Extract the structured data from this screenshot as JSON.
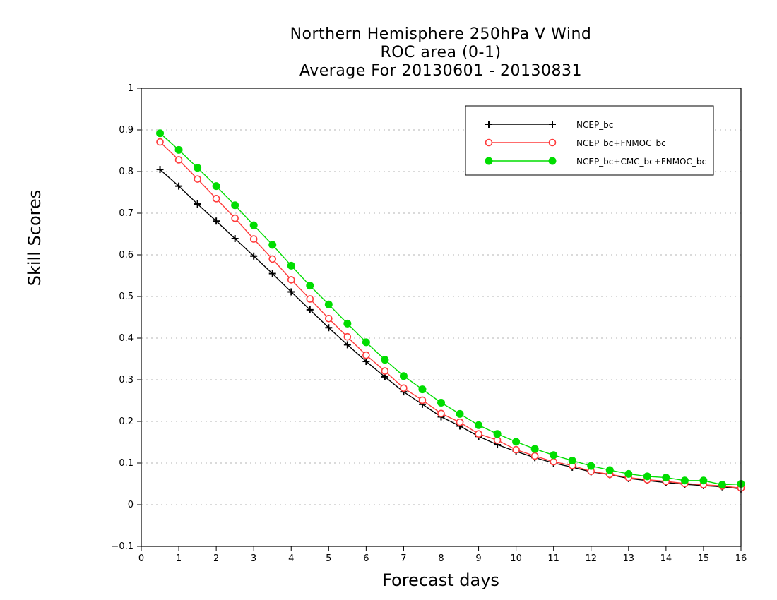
{
  "chart_data": {
    "type": "line",
    "title_lines": [
      "Northern Hemisphere 250hPa V Wind",
      "ROC area (0-1)",
      "Average For 20130601 - 20130831"
    ],
    "xlabel": "Forecast days",
    "ylabel": "Skill Scores",
    "xlim": [
      0,
      16
    ],
    "ylim": [
      -0.1,
      1
    ],
    "xticks": [
      0,
      1,
      2,
      3,
      4,
      5,
      6,
      7,
      8,
      9,
      10,
      11,
      12,
      13,
      14,
      15,
      16
    ],
    "xtick_labels": [
      "0",
      "1",
      "2",
      "3",
      "4",
      "5",
      "6",
      "7",
      "8",
      "9",
      "10",
      "11",
      "12",
      "13",
      "14",
      "15",
      "16"
    ],
    "yticks": [
      -0.1,
      0,
      0.1,
      0.2,
      0.3,
      0.4,
      0.5,
      0.6,
      0.7,
      0.8,
      0.9,
      1
    ],
    "ytick_labels": [
      "−0.1",
      "0",
      "0.1",
      "0.2",
      "0.3",
      "0.4",
      "0.5",
      "0.6",
      "0.7",
      "0.8",
      "0.9",
      "1"
    ],
    "grid": "dotted horizontal",
    "legend_position": "top-right",
    "x": [
      0.5,
      1,
      1.5,
      2,
      2.5,
      3,
      3.5,
      4,
      4.5,
      5,
      5.5,
      6,
      6.5,
      7,
      7.5,
      8,
      8.5,
      9,
      9.5,
      10,
      10.5,
      11,
      11.5,
      12,
      12.5,
      13,
      13.5,
      14,
      14.5,
      15,
      15.5,
      16
    ],
    "series": [
      {
        "name": "NCEP_bc",
        "color": "#000000",
        "marker": "plus",
        "values": [
          0.805,
          0.765,
          0.722,
          0.681,
          0.639,
          0.597,
          0.555,
          0.511,
          0.468,
          0.425,
          0.384,
          0.344,
          0.307,
          0.271,
          0.241,
          0.211,
          0.189,
          0.164,
          0.144,
          0.128,
          0.113,
          0.1,
          0.09,
          0.079,
          0.072,
          0.063,
          0.058,
          0.053,
          0.049,
          0.046,
          0.043,
          0.038
        ]
      },
      {
        "name": "NCEP_bc+FNMOC_bc",
        "color": "#ff3b3b",
        "marker": "open-circle",
        "values": [
          0.871,
          0.828,
          0.782,
          0.735,
          0.688,
          0.638,
          0.59,
          0.54,
          0.494,
          0.447,
          0.403,
          0.359,
          0.321,
          0.28,
          0.251,
          0.219,
          0.198,
          0.17,
          0.155,
          0.132,
          0.117,
          0.103,
          0.094,
          0.08,
          0.073,
          0.065,
          0.06,
          0.056,
          0.051,
          0.048,
          0.045,
          0.04
        ]
      },
      {
        "name": "NCEP_bc+CMC_bc+FNMOC_bc",
        "color": "#00dd00",
        "marker": "filled-circle",
        "values": [
          0.892,
          0.852,
          0.809,
          0.765,
          0.719,
          0.671,
          0.624,
          0.574,
          0.526,
          0.481,
          0.435,
          0.39,
          0.348,
          0.309,
          0.277,
          0.245,
          0.218,
          0.191,
          0.17,
          0.151,
          0.134,
          0.119,
          0.106,
          0.093,
          0.083,
          0.074,
          0.068,
          0.065,
          0.058,
          0.058,
          0.048,
          0.05
        ]
      }
    ]
  }
}
